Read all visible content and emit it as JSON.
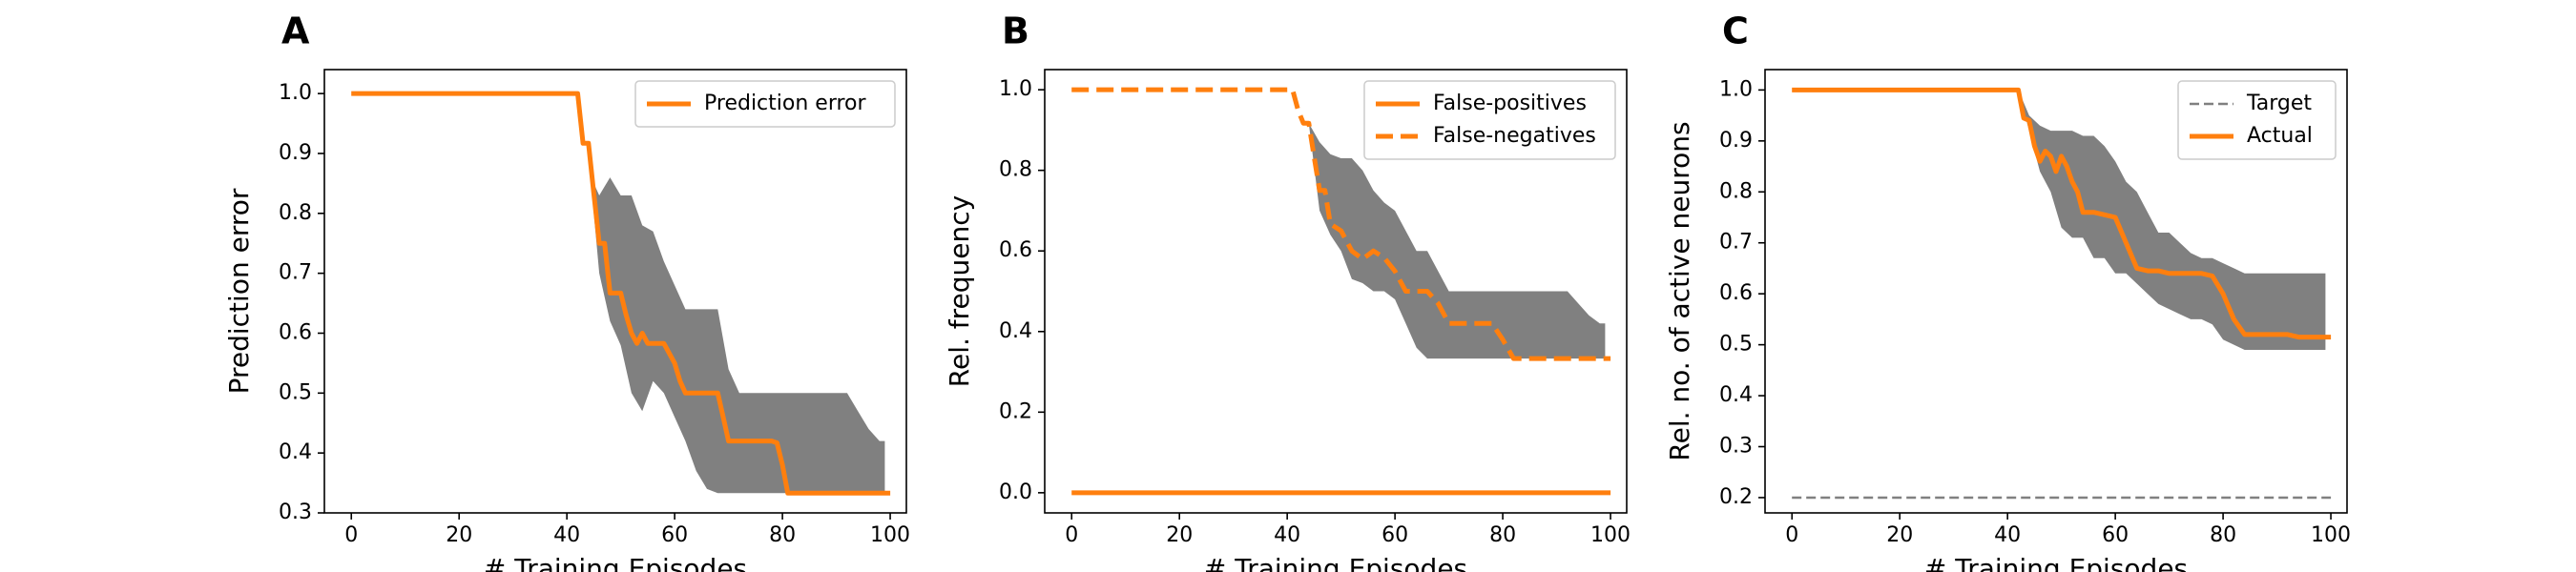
{
  "colors": {
    "orange": "#ff7f0e",
    "band": "#808080",
    "target": "#808080",
    "axes": "#000000"
  },
  "chart_data": [
    {
      "panel": "A",
      "type": "line",
      "xlabel": "# Training Episodes",
      "ylabel": "Prediction error",
      "xlim": [
        -5,
        103
      ],
      "ylim": [
        0.3,
        1.04
      ],
      "xticks": [
        0,
        20,
        40,
        60,
        80,
        100
      ],
      "yticks": [
        0.3,
        0.4,
        0.5,
        0.6,
        0.7,
        0.8,
        0.9,
        1.0
      ],
      "ytick_labels": [
        "0.3",
        "0.4",
        "0.5",
        "0.6",
        "0.7",
        "0.8",
        "0.9",
        "1.0"
      ],
      "legend_position": "top-right",
      "series": [
        {
          "name": "Prediction error",
          "style": "solid",
          "x": [
            0,
            42,
            43,
            44,
            45,
            46,
            47,
            48,
            50,
            51,
            52,
            53,
            54,
            55,
            56,
            57,
            58,
            60,
            61,
            62,
            63,
            64,
            65,
            66,
            67,
            68,
            69,
            70,
            71,
            72,
            73,
            74,
            75,
            76,
            77,
            78,
            79,
            80,
            81,
            82,
            100
          ],
          "y": [
            1.0,
            1.0,
            0.917,
            0.917,
            0.833,
            0.75,
            0.75,
            0.667,
            0.667,
            0.63,
            0.6,
            0.583,
            0.6,
            0.583,
            0.583,
            0.583,
            0.583,
            0.55,
            0.52,
            0.5,
            0.5,
            0.5,
            0.5,
            0.5,
            0.5,
            0.5,
            0.46,
            0.42,
            0.42,
            0.42,
            0.42,
            0.42,
            0.42,
            0.42,
            0.42,
            0.42,
            0.417,
            0.38,
            0.333,
            0.333,
            0.333
          ]
        }
      ],
      "band": {
        "x": [
          42,
          43,
          44,
          45,
          46,
          48,
          50,
          52,
          54,
          56,
          58,
          60,
          62,
          64,
          66,
          68,
          70,
          72,
          74,
          76,
          78,
          80,
          82,
          84,
          86,
          88,
          90,
          92,
          94,
          96,
          98,
          99
        ],
        "upper": [
          1.0,
          0.917,
          0.917,
          0.85,
          0.83,
          0.86,
          0.83,
          0.83,
          0.78,
          0.77,
          0.72,
          0.68,
          0.64,
          0.64,
          0.64,
          0.64,
          0.54,
          0.5,
          0.5,
          0.5,
          0.5,
          0.5,
          0.5,
          0.5,
          0.5,
          0.5,
          0.5,
          0.5,
          0.47,
          0.44,
          0.42,
          0.42
        ],
        "lower": [
          1.0,
          0.917,
          0.917,
          0.8,
          0.7,
          0.62,
          0.58,
          0.5,
          0.47,
          0.52,
          0.5,
          0.46,
          0.42,
          0.37,
          0.34,
          0.333,
          0.333,
          0.333,
          0.333,
          0.333,
          0.333,
          0.333,
          0.333,
          0.333,
          0.333,
          0.333,
          0.333,
          0.333,
          0.333,
          0.333,
          0.333,
          0.333
        ]
      }
    },
    {
      "panel": "B",
      "type": "line",
      "xlabel": "# Training Episodes",
      "ylabel": "Rel. frequency",
      "xlim": [
        -5,
        103
      ],
      "ylim": [
        -0.05,
        1.05
      ],
      "xticks": [
        0,
        20,
        40,
        60,
        80,
        100
      ],
      "yticks": [
        0.0,
        0.2,
        0.4,
        0.6,
        0.8,
        1.0
      ],
      "ytick_labels": [
        "0.0",
        "0.2",
        "0.4",
        "0.6",
        "0.8",
        "1.0"
      ],
      "legend_position": "top-right",
      "series": [
        {
          "name": "False-positives",
          "style": "solid",
          "x": [
            0,
            100
          ],
          "y": [
            0.0,
            0.0
          ]
        },
        {
          "name": "False-negatives",
          "style": "dashed",
          "x": [
            0,
            41,
            42,
            43,
            44,
            45,
            46,
            47,
            48,
            50,
            52,
            54,
            56,
            58,
            60,
            62,
            64,
            65,
            66,
            68,
            70,
            72,
            74,
            76,
            78,
            80,
            82,
            84,
            86,
            88,
            90,
            92,
            94,
            96,
            98,
            100
          ],
          "y": [
            1.0,
            1.0,
            0.95,
            0.917,
            0.917,
            0.833,
            0.75,
            0.75,
            0.667,
            0.65,
            0.6,
            0.58,
            0.6,
            0.583,
            0.55,
            0.5,
            0.5,
            0.5,
            0.5,
            0.47,
            0.42,
            0.42,
            0.42,
            0.42,
            0.42,
            0.38,
            0.333,
            0.333,
            0.333,
            0.333,
            0.333,
            0.333,
            0.333,
            0.333,
            0.333,
            0.333
          ]
        }
      ],
      "band": {
        "x": [
          42,
          44,
          46,
          48,
          50,
          52,
          54,
          56,
          58,
          60,
          62,
          64,
          66,
          68,
          70,
          72,
          74,
          76,
          78,
          80,
          82,
          84,
          86,
          88,
          90,
          92,
          94,
          96,
          98,
          99
        ],
        "upper": [
          1.0,
          0.917,
          0.87,
          0.84,
          0.83,
          0.83,
          0.8,
          0.75,
          0.72,
          0.7,
          0.65,
          0.6,
          0.6,
          0.55,
          0.5,
          0.5,
          0.5,
          0.5,
          0.5,
          0.5,
          0.5,
          0.5,
          0.5,
          0.5,
          0.5,
          0.5,
          0.47,
          0.44,
          0.42,
          0.42
        ],
        "lower": [
          1.0,
          0.917,
          0.7,
          0.64,
          0.6,
          0.53,
          0.52,
          0.5,
          0.5,
          0.48,
          0.42,
          0.36,
          0.333,
          0.333,
          0.333,
          0.333,
          0.333,
          0.333,
          0.333,
          0.333,
          0.333,
          0.333,
          0.333,
          0.333,
          0.333,
          0.333,
          0.333,
          0.333,
          0.333,
          0.333
        ]
      }
    },
    {
      "panel": "C",
      "type": "line",
      "xlabel": "# Training Episodes",
      "ylabel": "Rel. no. of active neurons",
      "xlim": [
        -5,
        103
      ],
      "ylim": [
        0.17,
        1.04
      ],
      "xticks": [
        0,
        20,
        40,
        60,
        80,
        100
      ],
      "yticks": [
        0.2,
        0.3,
        0.4,
        0.5,
        0.6,
        0.7,
        0.8,
        0.9,
        1.0
      ],
      "ytick_labels": [
        "0.2",
        "0.3",
        "0.4",
        "0.5",
        "0.6",
        "0.7",
        "0.8",
        "0.9",
        "1.0"
      ],
      "legend_position": "top-right",
      "series": [
        {
          "name": "Target",
          "style": "dashed-thin",
          "x": [
            0,
            100
          ],
          "y": [
            0.2,
            0.2
          ]
        },
        {
          "name": "Actual",
          "style": "solid",
          "x": [
            0,
            42,
            43,
            44,
            45,
            46,
            47,
            48,
            49,
            50,
            51,
            52,
            53,
            54,
            56,
            58,
            60,
            62,
            64,
            66,
            68,
            70,
            72,
            74,
            76,
            78,
            80,
            82,
            84,
            86,
            88,
            90,
            92,
            94,
            96,
            98,
            100
          ],
          "y": [
            1.0,
            1.0,
            0.945,
            0.94,
            0.89,
            0.86,
            0.88,
            0.87,
            0.84,
            0.87,
            0.85,
            0.82,
            0.8,
            0.76,
            0.76,
            0.755,
            0.75,
            0.7,
            0.65,
            0.645,
            0.645,
            0.64,
            0.64,
            0.64,
            0.64,
            0.635,
            0.6,
            0.55,
            0.52,
            0.52,
            0.52,
            0.52,
            0.52,
            0.515,
            0.515,
            0.515,
            0.515
          ]
        }
      ],
      "band": {
        "x": [
          42,
          44,
          46,
          48,
          50,
          52,
          54,
          56,
          58,
          60,
          62,
          64,
          66,
          68,
          70,
          72,
          74,
          76,
          78,
          80,
          82,
          84,
          86,
          88,
          90,
          92,
          94,
          96,
          98,
          99
        ],
        "upper": [
          1.0,
          0.95,
          0.93,
          0.92,
          0.92,
          0.92,
          0.91,
          0.91,
          0.89,
          0.86,
          0.82,
          0.8,
          0.76,
          0.72,
          0.72,
          0.7,
          0.68,
          0.67,
          0.67,
          0.66,
          0.65,
          0.64,
          0.64,
          0.64,
          0.64,
          0.64,
          0.64,
          0.64,
          0.64,
          0.64
        ],
        "lower": [
          1.0,
          0.92,
          0.84,
          0.8,
          0.73,
          0.71,
          0.71,
          0.67,
          0.67,
          0.64,
          0.64,
          0.62,
          0.6,
          0.58,
          0.57,
          0.56,
          0.55,
          0.55,
          0.54,
          0.51,
          0.5,
          0.49,
          0.49,
          0.49,
          0.49,
          0.49,
          0.49,
          0.49,
          0.49,
          0.49
        ]
      }
    }
  ]
}
